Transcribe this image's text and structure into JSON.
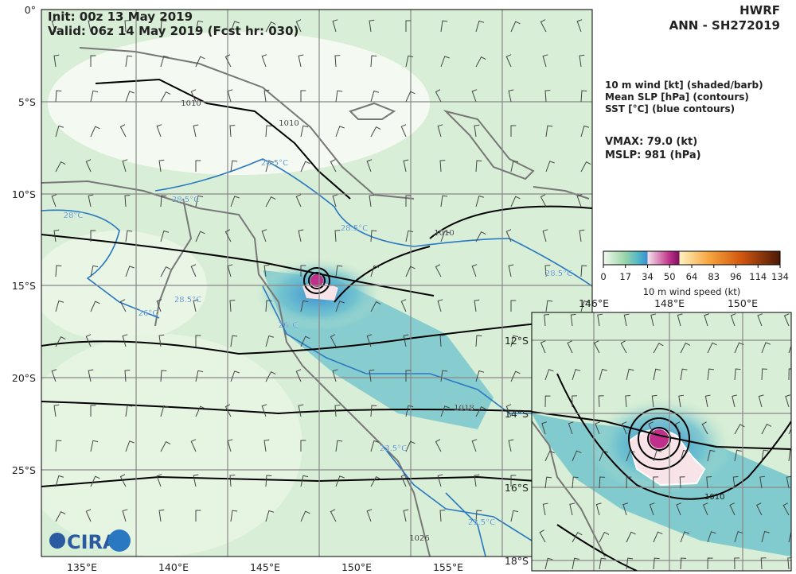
{
  "header": {
    "init": "Init:  00z 13 May 2019",
    "valid": "Valid: 06z 14 May 2019 (Fcst hr: 030)",
    "model": "HWRF",
    "storm": "ANN - SH272019"
  },
  "legend": {
    "fields": [
      "10 m wind [kt] (shaded/barb)",
      "Mean SLP [hPa] (contours)",
      "SST [°C] (blue contours)"
    ],
    "vmax": "VMAX:  79.0 (kt)",
    "mslp": "MSLP:  981 (hPa)"
  },
  "colorbar": {
    "ticks": [
      0,
      17,
      34,
      50,
      64,
      83,
      96,
      114,
      134
    ],
    "label": "10 m wind speed (kt)"
  },
  "map": {
    "lat_labels": [
      "0°",
      "5°S",
      "10°S",
      "15°S",
      "20°S",
      "25°S"
    ],
    "lon_labels": [
      "135°E",
      "140°E",
      "145°E",
      "150°E",
      "155°E"
    ],
    "contour_labels": [
      "1010",
      "1010",
      "28.5°C",
      "28.5°C",
      "28°C",
      "28.5°C",
      "1010",
      "28.5°C",
      "26°C",
      "28.5°C",
      "26°C",
      "1018",
      "23.5°C",
      "23.5°C",
      "1026"
    ]
  },
  "inset": {
    "lat_labels": [
      "12°S",
      "14°S",
      "16°S",
      "18°S"
    ],
    "lon_labels": [
      "146°E",
      "148°E",
      "150°E"
    ],
    "contour_labels": [
      "1010"
    ]
  },
  "logo": "CIRA"
}
